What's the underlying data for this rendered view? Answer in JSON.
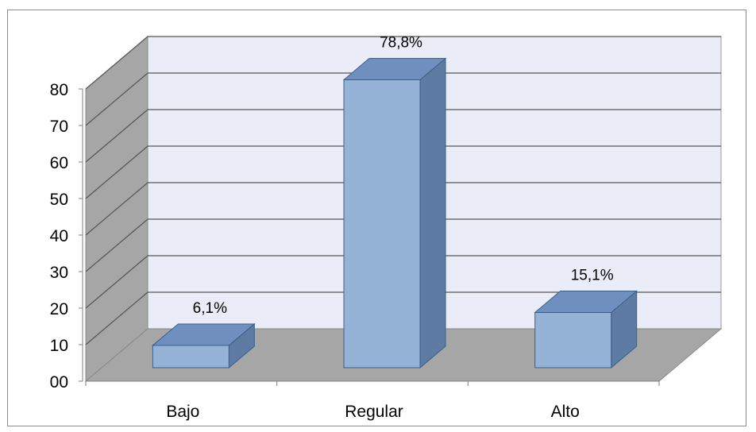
{
  "chart_data": {
    "type": "bar",
    "categories": [
      "Bajo",
      "Regular",
      "Alto"
    ],
    "values": [
      6.1,
      78.8,
      15.1
    ],
    "data_labels": [
      "6,1%",
      "78,8%",
      "15,1%"
    ],
    "ytick_labels": [
      "00",
      "10",
      "20",
      "30",
      "40",
      "50",
      "60",
      "70",
      "80"
    ],
    "ylim": [
      0,
      80
    ],
    "grid": true,
    "style": "3d-column",
    "colors": {
      "bar_front": "#95b3d7",
      "bar_top": "#6f90bf",
      "bar_side": "#5e7ba3",
      "bar_edge": "#3e5f8a",
      "back_wall": "#eaecf7",
      "side_wall": "#a6a6a6",
      "floor": "#a6a6a6",
      "gridline": "#555555"
    }
  }
}
